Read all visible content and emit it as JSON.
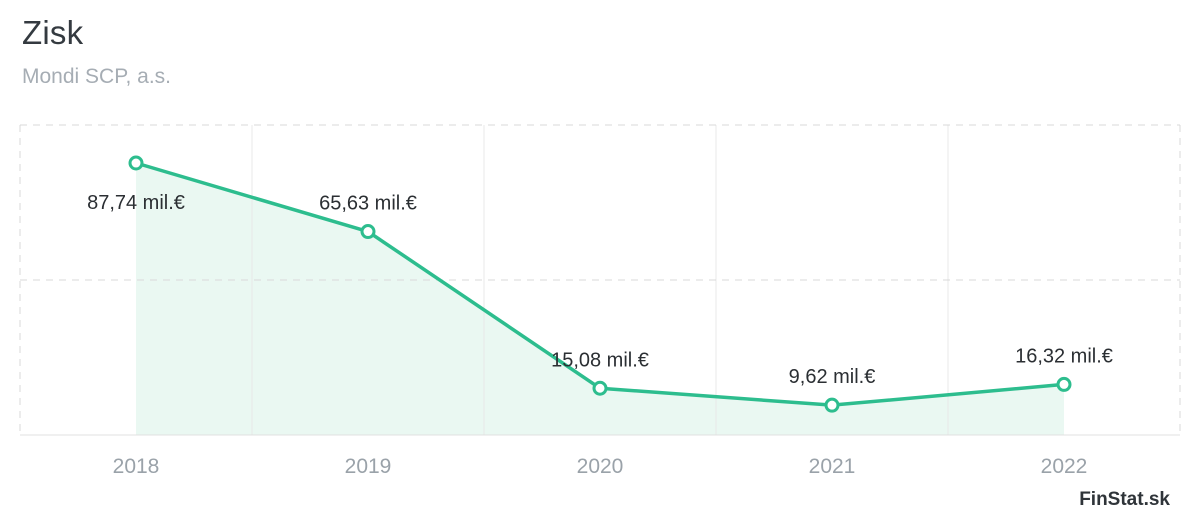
{
  "header": {
    "title": "Zisk",
    "subtitle": "Mondi SCP, a.s."
  },
  "watermark": {
    "label": "FinStat.sk"
  },
  "colors": {
    "line": "#2dbd8e",
    "area_fill": "#eaf8f2",
    "point_fill": "#ffffff",
    "grid_dashed": "#d9d9d9",
    "grid_solid": "#e8e8e8",
    "axis_line": "#e0e0e0",
    "value_label": "#2b2f33",
    "axis_label": "#9aa2a9"
  },
  "chart_data": {
    "type": "line",
    "title": "Zisk",
    "subtitle": "Mondi SCP, a.s.",
    "categories": [
      "2018",
      "2019",
      "2020",
      "2021",
      "2022"
    ],
    "values": [
      87.74,
      65.63,
      15.08,
      9.62,
      16.32
    ],
    "value_labels": [
      "87,74 mil.€",
      "65,63 mil.€",
      "15,08 mil.€",
      "9,62 mil.€",
      "16,32 mil.€"
    ],
    "unit": "mil.€",
    "ylim": [
      0,
      100
    ],
    "ygrid_values": [
      50
    ],
    "label_placement": [
      "below",
      "above",
      "above",
      "above",
      "above"
    ],
    "legend": "none",
    "grid": "dashed horizontal midline, solid vertical column separators, dashed top/left/right border",
    "area_fill": true
  }
}
